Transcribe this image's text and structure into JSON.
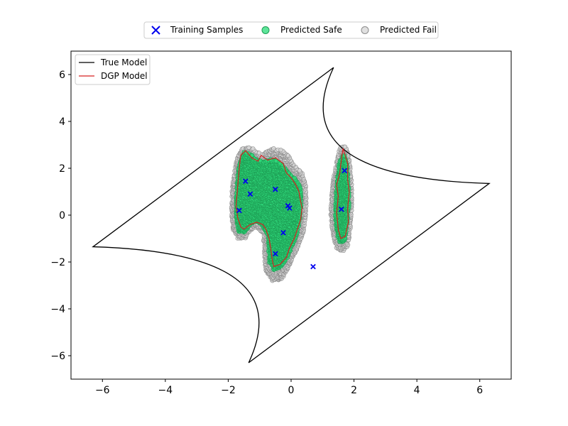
{
  "chart_data": {
    "type": "scatter",
    "xlim": [
      -7,
      7
    ],
    "ylim": [
      -7,
      7
    ],
    "xticks": [
      -6,
      -4,
      -2,
      0,
      2,
      4,
      6
    ],
    "yticks": [
      -6,
      -4,
      -2,
      0,
      2,
      4,
      6
    ],
    "xtick_labels": [
      "−6",
      "−4",
      "−2",
      "0",
      "2",
      "4",
      "6"
    ],
    "ytick_labels": [
      "−6",
      "−4",
      "−2",
      "0",
      "2",
      "4",
      "6"
    ],
    "grid": false,
    "title": "",
    "xlabel": "",
    "ylabel": "",
    "legend_top": {
      "placement": "above-plot-center",
      "entries": [
        "Training Samples",
        "Predicted Safe",
        "Predicted Fail"
      ]
    },
    "legend_inner": {
      "placement": "top-left",
      "entries": [
        "True Model",
        "DGP Model"
      ]
    },
    "colors": {
      "training": "#0000ee",
      "safe_fill": "#2fd87a",
      "safe_edge": "#1e9e55",
      "fail_fill": "#d9d9d9",
      "fail_edge": "#8c8c8c",
      "true_model": "#000000",
      "dgp_model": "#d62020"
    },
    "true_model": {
      "vertices": [
        [
          -6.3,
          -1.35
        ],
        [
          1.35,
          6.3
        ],
        [
          6.3,
          1.35
        ],
        [
          -1.35,
          -6.3
        ]
      ],
      "curves": [
        [
          [
            -6.3,
            -1.35
          ],
          [
            -0.6,
            4.35
          ],
          [
            1.35,
            6.3
          ]
        ],
        [
          [
            1.35,
            6.3
          ],
          [
            -0.3,
            1.6
          ],
          [
            6.3,
            1.35
          ]
        ],
        [
          [
            6.3,
            1.35
          ],
          [
            0.6,
            -4.35
          ],
          [
            -1.35,
            -6.3
          ]
        ],
        [
          [
            -1.35,
            -6.3
          ],
          [
            0.3,
            -1.6
          ],
          [
            -6.3,
            -1.35
          ]
        ]
      ]
    },
    "training_samples": [
      [
        -1.65,
        0.2
      ],
      [
        -1.45,
        1.45
      ],
      [
        -1.3,
        0.9
      ],
      [
        -0.5,
        1.1
      ],
      [
        -0.1,
        0.4
      ],
      [
        -0.05,
        0.3
      ],
      [
        -0.25,
        -0.75
      ],
      [
        -0.5,
        -1.65
      ],
      [
        0.7,
        -2.2
      ],
      [
        1.6,
        0.25
      ],
      [
        1.7,
        1.9
      ]
    ],
    "regions": [
      {
        "name": "main-cluster",
        "outer": [
          [
            -1.8,
            1.9
          ],
          [
            -1.72,
            2.45
          ],
          [
            -1.55,
            2.85
          ],
          [
            -1.35,
            2.9
          ],
          [
            -1.2,
            2.85
          ],
          [
            -1.05,
            2.7
          ],
          [
            -0.95,
            2.6
          ],
          [
            -0.8,
            2.72
          ],
          [
            -0.55,
            2.85
          ],
          [
            -0.3,
            2.78
          ],
          [
            -0.05,
            2.5
          ],
          [
            0.1,
            2.1
          ],
          [
            0.32,
            1.9
          ],
          [
            0.45,
            1.5
          ],
          [
            0.5,
            0.8
          ],
          [
            0.47,
            0.1
          ],
          [
            0.42,
            -0.6
          ],
          [
            0.25,
            -1.3
          ],
          [
            0.05,
            -1.8
          ],
          [
            -0.1,
            -2.3
          ],
          [
            -0.3,
            -2.75
          ],
          [
            -0.6,
            -2.8
          ],
          [
            -0.8,
            -2.4
          ],
          [
            -0.85,
            -1.9
          ],
          [
            -0.85,
            -1.5
          ],
          [
            -0.9,
            -0.8
          ],
          [
            -1.1,
            -0.5
          ],
          [
            -1.3,
            -0.65
          ],
          [
            -1.45,
            -1.0
          ],
          [
            -1.7,
            -1.0
          ],
          [
            -1.85,
            -0.6
          ],
          [
            -1.9,
            0.0
          ],
          [
            -1.9,
            1.0
          ]
        ],
        "inner": [
          [
            -1.7,
            1.8
          ],
          [
            -1.62,
            2.3
          ],
          [
            -1.5,
            2.7
          ],
          [
            -1.25,
            2.6
          ],
          [
            -1.1,
            2.4
          ],
          [
            -0.9,
            2.3
          ],
          [
            -0.6,
            2.4
          ],
          [
            -0.4,
            2.3
          ],
          [
            -0.2,
            2.05
          ],
          [
            -0.05,
            1.75
          ],
          [
            0.15,
            1.55
          ],
          [
            0.3,
            1.2
          ],
          [
            0.33,
            0.6
          ],
          [
            0.3,
            -0.1
          ],
          [
            0.2,
            -0.8
          ],
          [
            0.05,
            -1.3
          ],
          [
            -0.1,
            -1.8
          ],
          [
            -0.3,
            -2.2
          ],
          [
            -0.55,
            -2.35
          ],
          [
            -0.7,
            -2.0
          ],
          [
            -0.72,
            -1.5
          ],
          [
            -0.75,
            -0.9
          ],
          [
            -0.95,
            -0.4
          ],
          [
            -1.15,
            -0.3
          ],
          [
            -1.3,
            -0.45
          ],
          [
            -1.5,
            -0.75
          ],
          [
            -1.7,
            -0.7
          ],
          [
            -1.75,
            -0.2
          ],
          [
            -1.75,
            0.8
          ]
        ],
        "dgp": [
          [
            -1.65,
            2.0
          ],
          [
            -1.6,
            2.55
          ],
          [
            -1.45,
            2.75
          ],
          [
            -1.25,
            2.45
          ],
          [
            -1.05,
            2.3
          ],
          [
            -0.95,
            2.55
          ],
          [
            -0.75,
            2.35
          ],
          [
            -0.5,
            2.45
          ],
          [
            -0.25,
            2.2
          ],
          [
            -0.15,
            1.8
          ],
          [
            0.0,
            1.6
          ],
          [
            0.15,
            1.3
          ],
          [
            0.25,
            1.0
          ],
          [
            0.3,
            0.6
          ],
          [
            0.35,
            0.3
          ],
          [
            0.3,
            -0.2
          ],
          [
            0.2,
            -0.6
          ],
          [
            0.1,
            -1.0
          ],
          [
            -0.05,
            -1.4
          ],
          [
            -0.15,
            -1.8
          ],
          [
            -0.35,
            -2.1
          ],
          [
            -0.55,
            -2.2
          ],
          [
            -0.6,
            -1.9
          ],
          [
            -0.65,
            -1.4
          ],
          [
            -0.7,
            -1.0
          ],
          [
            -0.8,
            -0.6
          ],
          [
            -0.9,
            -0.4
          ],
          [
            -1.1,
            -0.3
          ],
          [
            -1.3,
            -0.4
          ],
          [
            -1.5,
            -0.6
          ],
          [
            -1.6,
            -0.5
          ],
          [
            -1.7,
            -0.1
          ],
          [
            -1.75,
            0.4
          ],
          [
            -1.7,
            1.2
          ]
        ]
      },
      {
        "name": "right-cluster",
        "outer": [
          [
            1.55,
            2.9
          ],
          [
            1.75,
            2.95
          ],
          [
            1.85,
            2.4
          ],
          [
            1.92,
            1.6
          ],
          [
            1.95,
            0.6
          ],
          [
            1.9,
            -0.4
          ],
          [
            1.82,
            -1.3
          ],
          [
            1.65,
            -1.55
          ],
          [
            1.45,
            -1.45
          ],
          [
            1.32,
            -0.8
          ],
          [
            1.25,
            0.0
          ],
          [
            1.28,
            0.9
          ],
          [
            1.35,
            1.6
          ],
          [
            1.45,
            2.3
          ]
        ],
        "inner": [
          [
            1.6,
            2.5
          ],
          [
            1.72,
            2.6
          ],
          [
            1.8,
            2.0
          ],
          [
            1.84,
            1.2
          ],
          [
            1.85,
            0.3
          ],
          [
            1.78,
            -0.5
          ],
          [
            1.7,
            -1.1
          ],
          [
            1.55,
            -1.2
          ],
          [
            1.45,
            -0.8
          ],
          [
            1.4,
            0.0
          ],
          [
            1.42,
            0.9
          ],
          [
            1.48,
            1.7
          ],
          [
            1.52,
            2.2
          ]
        ],
        "dgp": [
          [
            1.6,
            2.4
          ],
          [
            1.65,
            2.85
          ],
          [
            1.8,
            2.2
          ],
          [
            1.8,
            1.5
          ],
          [
            1.85,
            1.0
          ],
          [
            1.8,
            0.3
          ],
          [
            1.82,
            -0.3
          ],
          [
            1.72,
            -0.9
          ],
          [
            1.58,
            -1.0
          ],
          [
            1.5,
            -0.6
          ],
          [
            1.45,
            0.1
          ],
          [
            1.5,
            0.8
          ],
          [
            1.45,
            1.3
          ],
          [
            1.55,
            1.8
          ]
        ]
      }
    ]
  }
}
